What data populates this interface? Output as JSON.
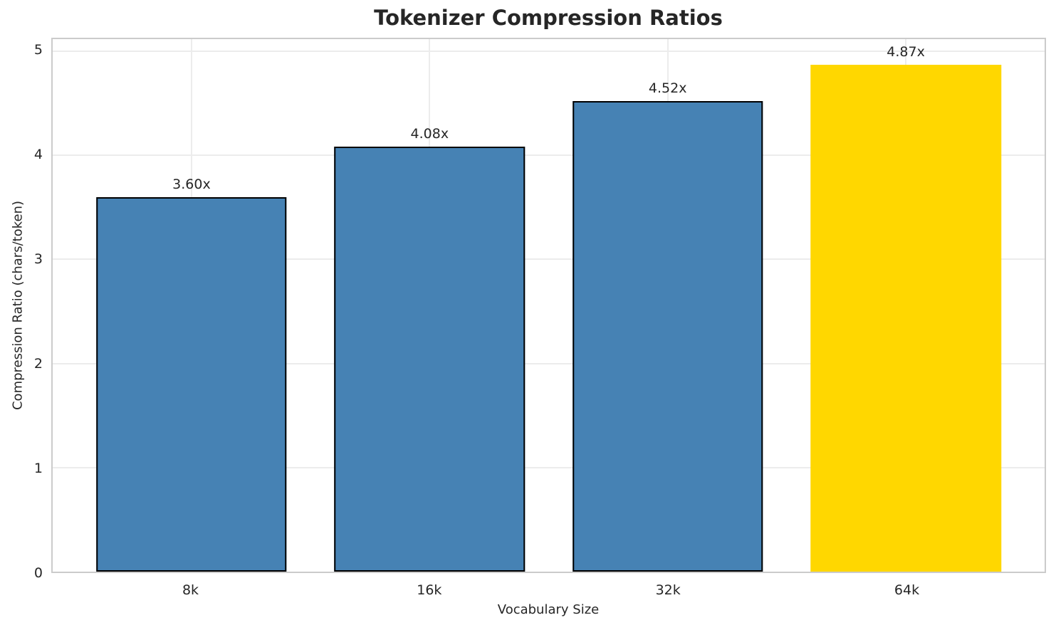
{
  "chart_data": {
    "type": "bar",
    "title": "Tokenizer Compression Ratios",
    "xlabel": "Vocabulary Size",
    "ylabel": "Compression Ratio (chars/token)",
    "categories": [
      "8k",
      "16k",
      "32k",
      "64k"
    ],
    "values": [
      3.6,
      4.08,
      4.52,
      4.87
    ],
    "bar_labels": [
      "3.60x",
      "4.08x",
      "4.52x",
      "4.87x"
    ],
    "bar_colors": [
      "#4682B4",
      "#4682B4",
      "#4682B4",
      "#FFD700"
    ],
    "bar_edge_colors": [
      "#000000",
      "#000000",
      "#000000",
      "none"
    ],
    "bar_edge_width": 2,
    "bar_width_units": 0.8,
    "x_range": [
      -0.583,
      3.583
    ],
    "ylim": [
      0,
      5.115
    ],
    "yticks": [
      0,
      1,
      2,
      3,
      4,
      5
    ],
    "grid": true,
    "legend": "none",
    "colors": {
      "background": "#ffffff",
      "grid": "#ececec",
      "spine": "#cbcbcb",
      "text": "#262626",
      "highlight_bar": "#FFD700",
      "default_bar": "#4682B4"
    }
  }
}
